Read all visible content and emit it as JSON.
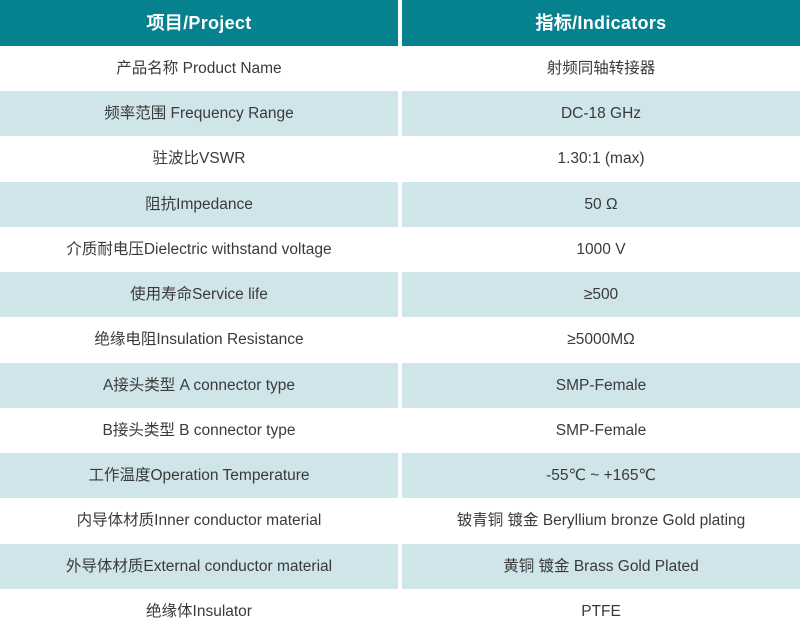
{
  "colors": {
    "header_bg": "#06828f",
    "header_text": "#ffffff",
    "row_alt_bg": "#cfe5e9",
    "row_bg": "#ffffff",
    "body_text": "#3a3a3a",
    "divider": "#ffffff"
  },
  "table": {
    "header": {
      "project": "项目/Project",
      "indicators": "指标/Indicators"
    },
    "rows": [
      {
        "project": "产品名称 Product Name",
        "indicator": "射频同轴转接器"
      },
      {
        "project": "频率范围 Frequency Range",
        "indicator": "DC-18 GHz"
      },
      {
        "project": "驻波比VSWR",
        "indicator": "1.30:1 (max)"
      },
      {
        "project": "阻抗Impedance",
        "indicator": "50 Ω"
      },
      {
        "project": "介质耐电压Dielectric withstand voltage",
        "indicator": "1000 V"
      },
      {
        "project": "使用寿命Service life",
        "indicator": "≥500"
      },
      {
        "project": "绝缘电阻Insulation Resistance",
        "indicator": "≥5000MΩ"
      },
      {
        "project": "A接头类型 A connector type",
        "indicator": "SMP-Female"
      },
      {
        "project": "B接头类型 B connector type",
        "indicator": "SMP-Female"
      },
      {
        "project": "工作温度Operation Temperature",
        "indicator": "-55℃ ~ +165℃"
      },
      {
        "project": "内导体材质Inner conductor material",
        "indicator": "铍青铜 镀金 Beryllium bronze Gold plating"
      },
      {
        "project": "外导体材质External conductor material",
        "indicator": "黄铜 镀金 Brass Gold Plated"
      },
      {
        "project": "绝缘体Insulator",
        "indicator": "PTFE"
      }
    ]
  }
}
